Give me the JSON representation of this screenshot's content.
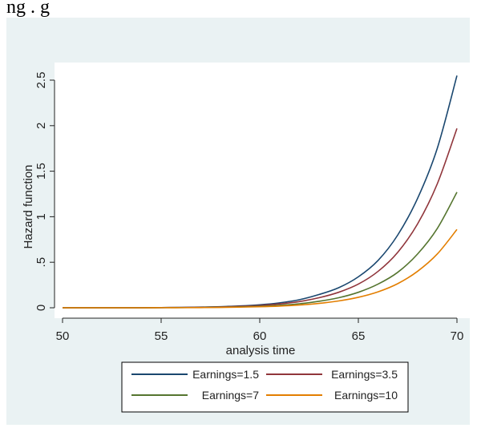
{
  "caption": "ng       .                   g",
  "chart_data": {
    "type": "line",
    "title": "",
    "xlabel": "analysis time",
    "ylabel": "Hazard function",
    "xlim": [
      50,
      70
    ],
    "ylim": [
      -0.1,
      2.6
    ],
    "x_ticks": [
      50,
      55,
      60,
      65,
      70
    ],
    "x_tick_labels": [
      "50",
      "55",
      "60",
      "65",
      "70"
    ],
    "y_ticks": [
      0,
      0.5,
      1,
      1.5,
      2,
      2.5
    ],
    "y_tick_labels": [
      "0",
      ".5",
      "1",
      "1.5",
      "2",
      "2.5"
    ],
    "grid": false,
    "legend_position": "bottom",
    "x": [
      50,
      52,
      54,
      55,
      56,
      57,
      58,
      59,
      60,
      61,
      62,
      63,
      64,
      65,
      66,
      67,
      68,
      69,
      70
    ],
    "series": [
      {
        "name": "Earnings=1.5",
        "color": "#1a476f",
        "values": [
          0,
          0,
          0,
          0.002,
          0.004,
          0.007,
          0.012,
          0.02,
          0.033,
          0.054,
          0.088,
          0.145,
          0.22,
          0.34,
          0.52,
          0.8,
          1.2,
          1.75,
          2.55
        ]
      },
      {
        "name": "Earnings=3.5",
        "color": "#90353b",
        "values": [
          0,
          0,
          0,
          0.002,
          0.003,
          0.005,
          0.009,
          0.015,
          0.025,
          0.042,
          0.068,
          0.11,
          0.17,
          0.26,
          0.4,
          0.61,
          0.92,
          1.36,
          1.97
        ]
      },
      {
        "name": "Earnings=7",
        "color": "#55752f",
        "values": [
          0,
          0,
          0,
          0.001,
          0.002,
          0.003,
          0.006,
          0.01,
          0.016,
          0.027,
          0.044,
          0.071,
          0.11,
          0.17,
          0.26,
          0.39,
          0.59,
          0.87,
          1.27
        ]
      },
      {
        "name": "Earnings=10",
        "color": "#e37e00",
        "values": [
          0,
          0,
          0,
          0.001,
          0.001,
          0.002,
          0.004,
          0.007,
          0.011,
          0.018,
          0.03,
          0.048,
          0.075,
          0.115,
          0.175,
          0.265,
          0.4,
          0.59,
          0.86
        ]
      }
    ]
  }
}
